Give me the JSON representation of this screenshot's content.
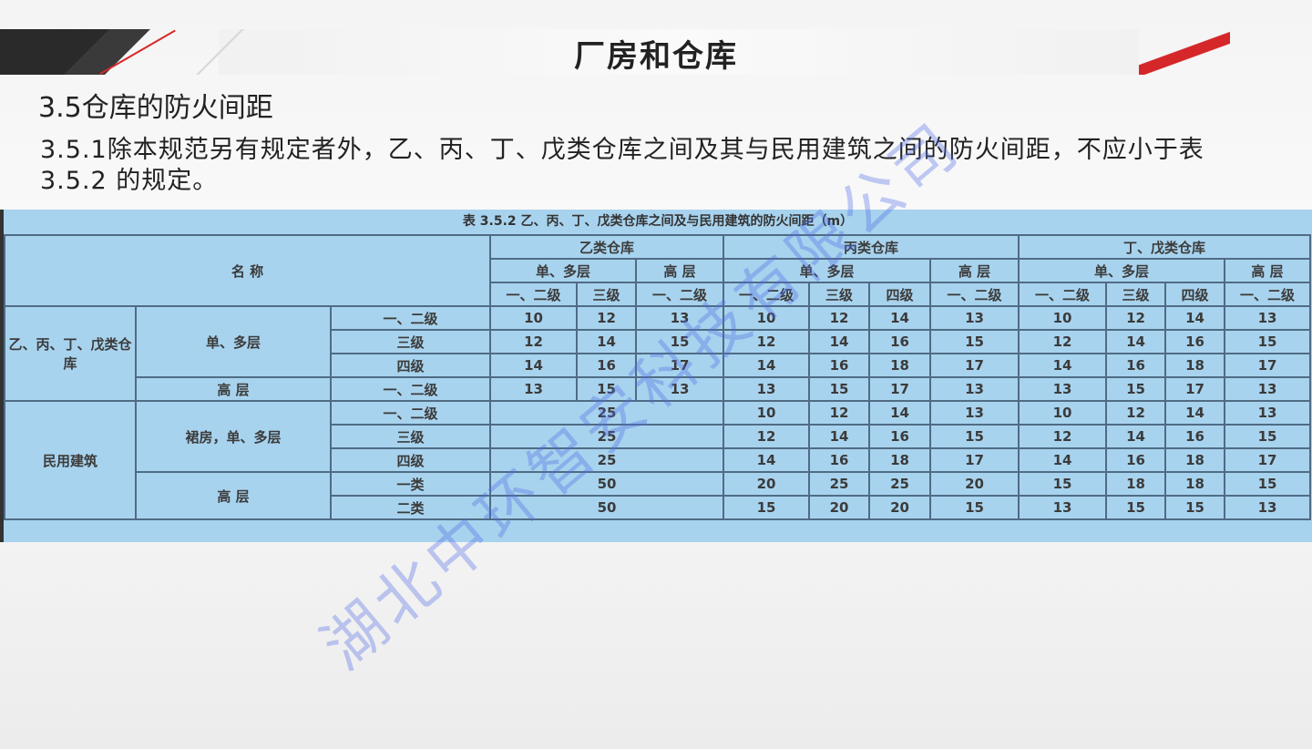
{
  "slide": {
    "title": "厂房和仓库",
    "section": "3.5仓库的防火间距",
    "paragraph": "3.5.1除本规范另有规定者外，乙、丙、丁、戊类仓库之间及其与民用建筑之间的防火间距，不应小于表3.5.2 的规定。"
  },
  "watermark": "湖北中环智安科技有限公司",
  "table": {
    "caption": "表 3.5.2    乙、丙、丁、戊类仓库之间及与民用建筑的防火间距（m）",
    "name_header": "名  称",
    "groups": [
      "乙类仓库",
      "丙类仓库",
      "丁、戊类仓库"
    ],
    "sub": {
      "multi": "单、多层",
      "high": "高 层"
    },
    "grades": [
      "一、二级",
      "三级",
      "一、二级",
      "一、二级",
      "三级",
      "四级",
      "一、二级",
      "一、二级",
      "三级",
      "四级",
      "一、二级"
    ],
    "row_groups": [
      {
        "label": "乙、丙、丁、戊类仓库",
        "subgroups": [
          {
            "label": "单、多层",
            "rows": [
              {
                "grade": "一、二级",
                "values": [
                  "10",
                  "12",
                  "13",
                  "10",
                  "12",
                  "14",
                  "13",
                  "10",
                  "12",
                  "14",
                  "13"
                ]
              },
              {
                "grade": "三级",
                "values": [
                  "12",
                  "14",
                  "15",
                  "12",
                  "14",
                  "16",
                  "15",
                  "12",
                  "14",
                  "16",
                  "15"
                ]
              },
              {
                "grade": "四级",
                "values": [
                  "14",
                  "16",
                  "17",
                  "14",
                  "16",
                  "18",
                  "17",
                  "14",
                  "16",
                  "18",
                  "17"
                ]
              }
            ]
          },
          {
            "label": "高 层",
            "rows": [
              {
                "grade": "一、二级",
                "values": [
                  "13",
                  "15",
                  "13",
                  "13",
                  "15",
                  "17",
                  "13",
                  "13",
                  "15",
                  "17",
                  "13"
                ]
              }
            ]
          }
        ]
      },
      {
        "label": "民用建筑",
        "subgroups": [
          {
            "label": "裙房，单、多层",
            "rows": [
              {
                "grade": "一、二级",
                "merged": "25",
                "values": [
                  "10",
                  "12",
                  "14",
                  "13",
                  "10",
                  "12",
                  "14",
                  "13"
                ]
              },
              {
                "grade": "三级",
                "merged": "25",
                "values": [
                  "12",
                  "14",
                  "16",
                  "15",
                  "12",
                  "14",
                  "16",
                  "15"
                ]
              },
              {
                "grade": "四级",
                "merged": "25",
                "values": [
                  "14",
                  "16",
                  "18",
                  "17",
                  "14",
                  "16",
                  "18",
                  "17"
                ]
              }
            ]
          },
          {
            "label": "高 层",
            "rows": [
              {
                "grade": "一类",
                "merged": "50",
                "values": [
                  "20",
                  "25",
                  "25",
                  "20",
                  "15",
                  "18",
                  "18",
                  "15"
                ]
              },
              {
                "grade": "二类",
                "merged": "50",
                "values": [
                  "15",
                  "20",
                  "20",
                  "15",
                  "13",
                  "15",
                  "15",
                  "13"
                ]
              }
            ]
          }
        ]
      }
    ]
  }
}
